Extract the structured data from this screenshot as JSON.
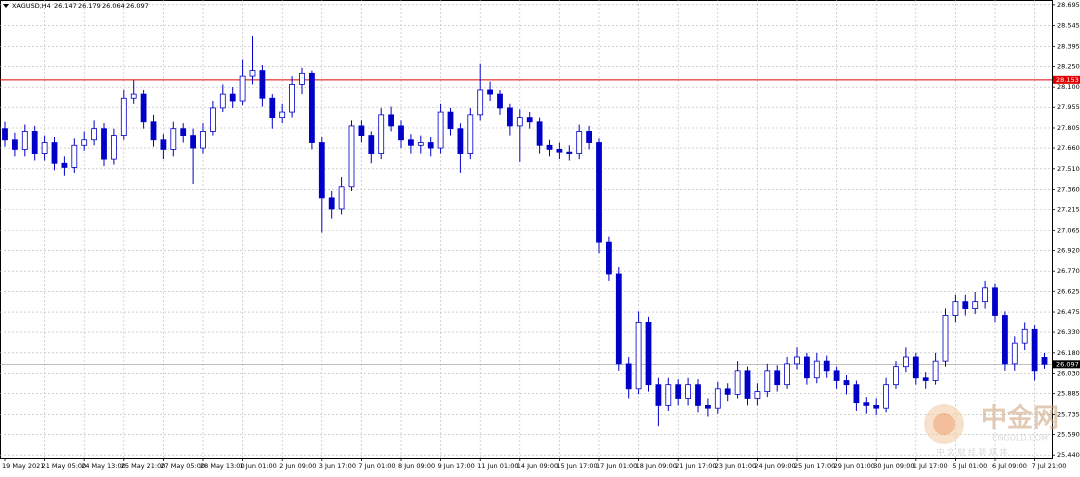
{
  "chart_data": {
    "type": "candlestick",
    "symbol": "XAGUSD,H4",
    "ylim": [
      25.42,
      28.73
    ],
    "yticks": [
      28.695,
      28.545,
      28.395,
      {
        "value": 28.25,
        "label": "28.250"
      },
      {
        "value": 28.1,
        "label": "28.100"
      },
      27.955,
      27.805,
      {
        "value": 27.66,
        "label": "27.660"
      },
      {
        "value": 27.51,
        "label": "27.510"
      },
      {
        "value": 27.36,
        "label": "27.360"
      },
      27.215,
      27.065,
      {
        "value": 26.92,
        "label": "26.920"
      },
      {
        "value": 26.77,
        "label": "26.770"
      },
      26.625,
      26.475,
      {
        "value": 26.33,
        "label": "26.330"
      },
      {
        "value": 26.18,
        "label": "26.180"
      },
      {
        "value": 26.03,
        "label": "26.030"
      },
      25.885,
      25.735,
      {
        "value": 25.59,
        "label": "25.590"
      },
      {
        "value": 25.44,
        "label": "25.440"
      }
    ],
    "grid": true,
    "up_color": "#ffffff",
    "down_color": "#0000c8",
    "wick_color": "#0000c8",
    "level_line": {
      "value": 28.153,
      "color": "#e00000"
    },
    "current_price": 26.097,
    "x_labels": [
      "19 May 2021",
      "21 May 05:00",
      "24 May 13:00",
      "25 May 21:00",
      "27 May 05:00",
      "28 May 13:00",
      "1 Jun 01:00",
      "2 Jun 09:00",
      "3 Jun 17:00",
      "7 Jun 01:00",
      "8 Jun 09:00",
      "9 Jun 17:00",
      "11 Jun 01:00",
      "14 Jun 09:00",
      "15 Jun 17:00",
      "17 Jun 01:00",
      "18 Jun 09:00",
      "21 Jun 17:00",
      "23 Jun 01:00",
      "24 Jun 09:00",
      "25 Jun 17:00",
      "29 Jun 01:00",
      "30 Jun 09:00",
      "1 Jul 17:00",
      "5 Jul 01:00",
      "6 Jul 09:00",
      "7 Jul 21:00"
    ],
    "candles": [
      [
        27.8,
        27.85,
        27.67,
        27.72
      ],
      [
        27.72,
        27.77,
        27.6,
        27.65
      ],
      [
        27.65,
        27.83,
        27.6,
        27.78
      ],
      [
        27.78,
        27.82,
        27.57,
        27.62
      ],
      [
        27.62,
        27.75,
        27.57,
        27.7
      ],
      [
        27.7,
        27.74,
        27.5,
        27.55
      ],
      [
        27.55,
        27.6,
        27.46,
        27.52
      ],
      [
        27.52,
        27.73,
        27.48,
        27.68
      ],
      [
        27.68,
        27.78,
        27.64,
        27.72
      ],
      [
        27.72,
        27.86,
        27.68,
        27.8
      ],
      [
        27.8,
        27.84,
        27.53,
        27.58
      ],
      [
        27.58,
        27.8,
        27.54,
        27.75
      ],
      [
        27.75,
        28.08,
        27.72,
        28.02
      ],
      [
        28.02,
        28.15,
        27.98,
        28.05
      ],
      [
        28.05,
        28.08,
        27.8,
        27.85
      ],
      [
        27.85,
        27.9,
        27.67,
        27.72
      ],
      [
        27.72,
        27.76,
        27.58,
        27.65
      ],
      [
        27.65,
        27.85,
        27.6,
        27.8
      ],
      [
        27.8,
        27.84,
        27.7,
        27.75
      ],
      [
        27.75,
        27.8,
        27.4,
        27.66
      ],
      [
        27.66,
        27.84,
        27.62,
        27.78
      ],
      [
        27.78,
        28.0,
        27.75,
        27.95
      ],
      [
        27.95,
        28.12,
        27.92,
        28.05
      ],
      [
        28.05,
        28.1,
        27.95,
        28.0
      ],
      [
        28.0,
        28.3,
        27.97,
        28.18
      ],
      [
        28.18,
        28.47,
        28.12,
        28.22
      ],
      [
        28.22,
        28.26,
        27.96,
        28.02
      ],
      [
        28.02,
        28.05,
        27.8,
        27.88
      ],
      [
        27.88,
        27.98,
        27.84,
        27.92
      ],
      [
        27.92,
        28.18,
        27.88,
        28.12
      ],
      [
        28.12,
        28.24,
        28.05,
        28.2
      ],
      [
        28.2,
        28.22,
        27.65,
        27.7
      ],
      [
        27.7,
        27.74,
        27.05,
        27.3
      ],
      [
        27.3,
        27.35,
        27.15,
        27.22
      ],
      [
        27.22,
        27.45,
        27.18,
        27.38
      ],
      [
        27.38,
        27.86,
        27.35,
        27.82
      ],
      [
        27.82,
        27.86,
        27.7,
        27.75
      ],
      [
        27.75,
        27.78,
        27.55,
        27.62
      ],
      [
        27.62,
        27.95,
        27.58,
        27.9
      ],
      [
        27.9,
        27.96,
        27.78,
        27.82
      ],
      [
        27.82,
        27.86,
        27.66,
        27.72
      ],
      [
        27.72,
        27.76,
        27.62,
        27.68
      ],
      [
        27.68,
        27.75,
        27.62,
        27.7
      ],
      [
        27.7,
        27.74,
        27.6,
        27.66
      ],
      [
        27.66,
        27.98,
        27.62,
        27.92
      ],
      [
        27.92,
        27.95,
        27.75,
        27.8
      ],
      [
        27.8,
        27.84,
        27.48,
        27.62
      ],
      [
        27.62,
        27.95,
        27.58,
        27.9
      ],
      [
        27.9,
        28.27,
        27.86,
        28.08
      ],
      [
        28.08,
        28.14,
        28.0,
        28.05
      ],
      [
        28.05,
        28.08,
        27.9,
        27.95
      ],
      [
        27.95,
        27.98,
        27.75,
        27.82
      ],
      [
        27.82,
        27.94,
        27.56,
        27.88
      ],
      [
        27.88,
        27.92,
        27.8,
        27.85
      ],
      [
        27.85,
        27.88,
        27.62,
        27.68
      ],
      [
        27.68,
        27.72,
        27.6,
        27.65
      ],
      [
        27.65,
        27.7,
        27.58,
        27.63
      ],
      [
        27.63,
        27.68,
        27.57,
        27.62
      ],
      [
        27.62,
        27.83,
        27.58,
        27.78
      ],
      [
        27.78,
        27.82,
        27.65,
        27.7
      ],
      [
        27.7,
        27.73,
        26.9,
        26.98
      ],
      [
        26.98,
        27.02,
        26.7,
        26.75
      ],
      [
        26.75,
        26.8,
        26.05,
        26.1
      ],
      [
        26.1,
        26.15,
        25.85,
        25.92
      ],
      [
        25.92,
        26.48,
        25.88,
        26.4
      ],
      [
        26.4,
        26.44,
        25.9,
        25.95
      ],
      [
        25.95,
        26.0,
        25.65,
        25.8
      ],
      [
        25.8,
        26.0,
        25.76,
        25.95
      ],
      [
        25.95,
        25.99,
        25.8,
        25.85
      ],
      [
        25.85,
        26.0,
        25.8,
        25.95
      ],
      [
        25.95,
        25.99,
        25.75,
        25.8
      ],
      [
        25.8,
        25.85,
        25.72,
        25.78
      ],
      [
        25.78,
        25.97,
        25.74,
        25.92
      ],
      [
        25.92,
        25.96,
        25.83,
        25.88
      ],
      [
        25.88,
        26.12,
        25.85,
        26.05
      ],
      [
        26.05,
        26.08,
        25.8,
        25.85
      ],
      [
        25.85,
        25.96,
        25.8,
        25.9
      ],
      [
        25.9,
        26.1,
        25.86,
        26.05
      ],
      [
        26.05,
        26.09,
        25.9,
        25.95
      ],
      [
        25.95,
        26.15,
        25.92,
        26.1
      ],
      [
        26.1,
        26.22,
        26.06,
        26.15
      ],
      [
        26.15,
        26.18,
        25.95,
        26.0
      ],
      [
        26.0,
        26.18,
        25.96,
        26.12
      ],
      [
        26.12,
        26.16,
        26.0,
        26.05
      ],
      [
        26.05,
        26.08,
        25.92,
        25.98
      ],
      [
        25.98,
        26.02,
        25.88,
        25.95
      ],
      [
        25.95,
        25.98,
        25.76,
        25.82
      ],
      [
        25.82,
        25.86,
        25.74,
        25.8
      ],
      [
        25.8,
        25.85,
        25.73,
        25.78
      ],
      [
        25.78,
        26.0,
        25.75,
        25.95
      ],
      [
        25.95,
        26.12,
        25.92,
        26.08
      ],
      [
        26.08,
        26.22,
        26.04,
        26.15
      ],
      [
        26.15,
        26.18,
        25.95,
        26.0
      ],
      [
        26.0,
        26.04,
        25.92,
        25.98
      ],
      [
        25.98,
        26.18,
        25.95,
        26.12
      ],
      [
        26.12,
        26.5,
        26.08,
        26.45
      ],
      [
        26.45,
        26.6,
        26.4,
        26.55
      ],
      [
        26.55,
        26.6,
        26.45,
        26.5
      ],
      [
        26.5,
        26.62,
        26.46,
        26.55
      ],
      [
        26.55,
        26.7,
        26.5,
        26.65
      ],
      [
        26.65,
        26.68,
        26.4,
        26.45
      ],
      [
        26.45,
        26.48,
        26.05,
        26.1
      ],
      [
        26.1,
        26.3,
        26.05,
        26.25
      ],
      [
        26.25,
        26.4,
        26.2,
        26.35
      ],
      [
        26.35,
        26.38,
        25.98,
        26.05
      ],
      [
        26.147,
        26.179,
        26.064,
        26.097
      ]
    ]
  },
  "watermark": {
    "name": "中金网",
    "site": "CNGOLD.COM",
    "slogan": "中 文 财 经 新 媒 体"
  }
}
